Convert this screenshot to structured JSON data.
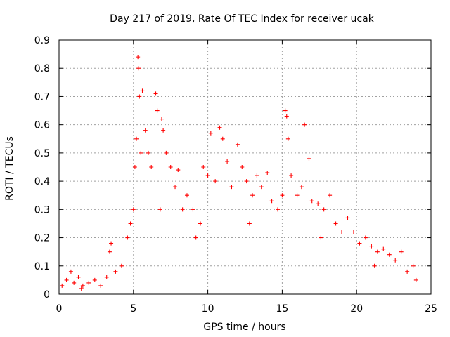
{
  "chart_data": {
    "type": "scatter",
    "title": "Day 217 of 2019, Rate Of TEC Index for receiver ucak",
    "xlabel": "GPS time / hours",
    "ylabel": "ROTI / TECUs",
    "xlim": [
      0,
      25
    ],
    "ylim": [
      0,
      0.9
    ],
    "xticks": [
      0,
      5,
      10,
      15,
      20,
      25
    ],
    "yticks": [
      0,
      0.1,
      0.2,
      0.3,
      0.4,
      0.5,
      0.6,
      0.7,
      0.8,
      0.9
    ],
    "grid": true,
    "marker": "plus",
    "color": "#ff0000",
    "series": [
      {
        "points": [
          [
            0.2,
            0.03
          ],
          [
            0.5,
            0.05
          ],
          [
            0.8,
            0.08
          ],
          [
            1.0,
            0.04
          ],
          [
            1.3,
            0.06
          ],
          [
            1.6,
            0.03
          ],
          [
            2.0,
            0.04
          ],
          [
            2.4,
            0.05
          ],
          [
            2.8,
            0.03
          ],
          [
            3.2,
            0.06
          ],
          [
            3.4,
            0.15
          ],
          [
            3.5,
            0.18
          ],
          [
            3.8,
            0.08
          ],
          [
            4.2,
            0.1
          ],
          [
            4.6,
            0.2
          ],
          [
            4.8,
            0.25
          ],
          [
            5.0,
            0.3
          ],
          [
            5.1,
            0.45
          ],
          [
            5.2,
            0.55
          ],
          [
            5.3,
            0.84
          ],
          [
            5.35,
            0.8
          ],
          [
            5.4,
            0.7
          ],
          [
            5.5,
            0.5
          ],
          [
            5.6,
            0.72
          ],
          [
            5.8,
            0.58
          ],
          [
            6.0,
            0.5
          ],
          [
            6.2,
            0.45
          ],
          [
            6.5,
            0.71
          ],
          [
            6.6,
            0.65
          ],
          [
            6.9,
            0.62
          ],
          [
            7.0,
            0.58
          ],
          [
            7.2,
            0.5
          ],
          [
            7.5,
            0.45
          ],
          [
            7.8,
            0.38
          ],
          [
            8.0,
            0.44
          ],
          [
            8.3,
            0.3
          ],
          [
            8.6,
            0.35
          ],
          [
            9.0,
            0.3
          ],
          [
            9.5,
            0.25
          ],
          [
            9.7,
            0.45
          ],
          [
            10.0,
            0.42
          ],
          [
            10.2,
            0.57
          ],
          [
            10.5,
            0.4
          ],
          [
            10.8,
            0.59
          ],
          [
            11.0,
            0.55
          ],
          [
            11.3,
            0.47
          ],
          [
            11.6,
            0.38
          ],
          [
            12.0,
            0.53
          ],
          [
            12.3,
            0.45
          ],
          [
            12.6,
            0.4
          ],
          [
            13.0,
            0.35
          ],
          [
            13.3,
            0.42
          ],
          [
            13.6,
            0.38
          ],
          [
            14.0,
            0.43
          ],
          [
            14.3,
            0.33
          ],
          [
            14.7,
            0.3
          ],
          [
            15.0,
            0.35
          ],
          [
            15.2,
            0.65
          ],
          [
            15.3,
            0.63
          ],
          [
            15.4,
            0.55
          ],
          [
            15.6,
            0.42
          ],
          [
            16.0,
            0.35
          ],
          [
            16.3,
            0.38
          ],
          [
            16.5,
            0.6
          ],
          [
            16.8,
            0.48
          ],
          [
            17.0,
            0.33
          ],
          [
            17.4,
            0.32
          ],
          [
            17.8,
            0.3
          ],
          [
            18.2,
            0.35
          ],
          [
            18.6,
            0.25
          ],
          [
            19.0,
            0.22
          ],
          [
            19.4,
            0.27
          ],
          [
            19.8,
            0.22
          ],
          [
            20.2,
            0.18
          ],
          [
            20.6,
            0.2
          ],
          [
            21.0,
            0.17
          ],
          [
            21.4,
            0.15
          ],
          [
            21.8,
            0.16
          ],
          [
            22.2,
            0.14
          ],
          [
            22.6,
            0.12
          ],
          [
            23.0,
            0.15
          ],
          [
            23.4,
            0.08
          ],
          [
            23.8,
            0.1
          ],
          [
            24.0,
            0.05
          ],
          [
            1.5,
            0.02
          ],
          [
            6.8,
            0.3
          ],
          [
            9.2,
            0.2
          ],
          [
            12.8,
            0.25
          ],
          [
            17.6,
            0.2
          ],
          [
            21.2,
            0.1
          ]
        ]
      }
    ]
  }
}
